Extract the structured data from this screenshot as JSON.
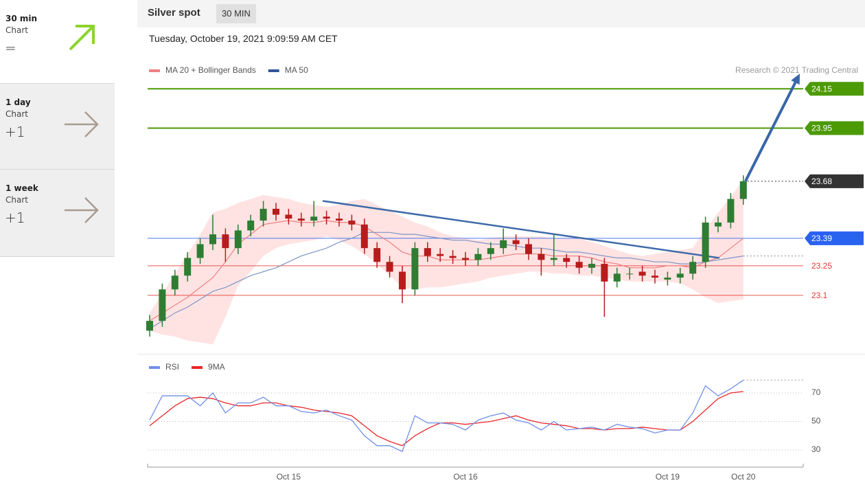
{
  "sidebar": [
    {
      "period": "30 min",
      "label": "Chart",
      "signal": "="
    },
    {
      "period": "1 day",
      "label": "Chart",
      "signal": "+1"
    },
    {
      "period": "1 week",
      "label": "Chart",
      "signal": "+1"
    }
  ],
  "header": {
    "title": "Silver spot",
    "interval": "30 MIN",
    "timestamp": "Tuesday, October 19, 2021 9:09:59 AM CET"
  },
  "chart_data": [
    {
      "type": "candlestick",
      "note": "Research © 2021 Trading Central",
      "categories": [
        null,
        null,
        null,
        null,
        null,
        null,
        null,
        null,
        null,
        null,
        null,
        "Oct 15",
        null,
        null,
        null,
        null,
        null,
        null,
        null,
        null,
        null,
        null,
        null,
        null,
        null,
        "Oct 16",
        null,
        null,
        null,
        null,
        null,
        null,
        null,
        null,
        null,
        null,
        null,
        null,
        null,
        null,
        null,
        "Oct 19",
        null,
        null,
        null,
        null,
        null,
        "Oct 20"
      ],
      "open": [
        22.92,
        22.97,
        23.13,
        23.2,
        23.29,
        23.36,
        23.41,
        23.34,
        23.43,
        23.48,
        23.54,
        23.51,
        23.49,
        23.48,
        23.5,
        23.49,
        23.48,
        23.46,
        23.34,
        23.27,
        23.22,
        23.13,
        23.34,
        23.31,
        23.3,
        23.29,
        23.28,
        23.31,
        23.34,
        23.38,
        23.36,
        23.31,
        23.28,
        23.29,
        23.27,
        23.24,
        23.26,
        23.17,
        23.21,
        23.22,
        23.2,
        23.18,
        23.19,
        23.21,
        23.27,
        23.45,
        23.47,
        23.59
      ],
      "high": [
        23.0,
        23.16,
        23.23,
        23.32,
        23.39,
        23.51,
        23.44,
        23.46,
        23.51,
        23.58,
        23.57,
        23.54,
        23.52,
        23.58,
        23.53,
        23.52,
        23.51,
        23.49,
        23.37,
        23.3,
        23.25,
        23.37,
        23.37,
        23.34,
        23.33,
        23.32,
        23.34,
        23.37,
        23.44,
        23.41,
        23.39,
        23.34,
        23.41,
        23.31,
        23.3,
        23.29,
        23.29,
        23.24,
        23.24,
        23.25,
        23.23,
        23.22,
        23.24,
        23.3,
        23.5,
        23.5,
        23.62,
        23.71
      ],
      "low": [
        22.89,
        22.94,
        23.1,
        23.17,
        23.26,
        23.33,
        23.27,
        23.31,
        23.4,
        23.45,
        23.48,
        23.46,
        23.45,
        23.45,
        23.46,
        23.45,
        23.43,
        23.31,
        23.24,
        23.19,
        23.06,
        23.1,
        23.27,
        23.27,
        23.26,
        23.25,
        23.25,
        23.28,
        23.31,
        23.33,
        23.28,
        23.2,
        23.25,
        23.24,
        23.21,
        23.21,
        22.99,
        23.14,
        23.18,
        23.17,
        23.16,
        23.15,
        23.16,
        23.18,
        23.24,
        23.42,
        23.44,
        23.56
      ],
      "close": [
        22.97,
        23.13,
        23.2,
        23.29,
        23.36,
        23.41,
        23.34,
        23.43,
        23.48,
        23.54,
        23.51,
        23.49,
        23.48,
        23.5,
        23.49,
        23.48,
        23.46,
        23.34,
        23.27,
        23.22,
        23.13,
        23.34,
        23.3,
        23.3,
        23.29,
        23.28,
        23.31,
        23.34,
        23.38,
        23.36,
        23.31,
        23.28,
        23.29,
        23.27,
        23.24,
        23.26,
        23.17,
        23.21,
        23.21,
        23.2,
        23.19,
        23.19,
        23.21,
        23.27,
        23.47,
        23.47,
        23.59,
        23.68
      ],
      "up_color": "#2e7d32",
      "down_color": "#b71c1c",
      "series": [
        {
          "name": "MA 20 + Bollinger Bands",
          "color": "#f07f7f",
          "band_color": "#ffdede",
          "values": [
            22.97,
            23.01,
            23.05,
            23.09,
            23.14,
            23.19,
            23.27,
            23.36,
            23.41,
            23.46,
            23.47,
            23.48,
            23.47,
            23.47,
            23.48,
            23.47,
            23.47,
            23.45,
            23.41,
            23.37,
            23.32,
            23.3,
            23.3,
            23.28,
            23.28,
            23.28,
            23.28,
            23.29,
            23.3,
            23.31,
            23.31,
            23.31,
            23.3,
            23.3,
            23.3,
            23.29,
            23.27,
            23.26,
            23.24,
            23.24,
            23.24,
            23.25,
            23.25,
            23.24,
            23.27,
            23.29,
            23.34,
            23.39
          ],
          "upper": [
            23.01,
            23.11,
            23.21,
            23.31,
            23.41,
            23.52,
            23.54,
            23.57,
            23.59,
            23.61,
            23.6,
            23.59,
            23.57,
            23.56,
            23.55,
            23.56,
            23.58,
            23.59,
            23.56,
            23.53,
            23.5,
            23.47,
            23.45,
            23.42,
            23.4,
            23.39,
            23.38,
            23.39,
            23.4,
            23.4,
            23.4,
            23.4,
            23.39,
            23.39,
            23.39,
            23.37,
            23.35,
            23.33,
            23.31,
            23.3,
            23.31,
            23.32,
            23.33,
            23.34,
            23.44,
            23.52,
            23.6,
            23.69
          ],
          "lower": [
            22.92,
            22.9,
            22.89,
            22.87,
            22.86,
            22.85,
            22.99,
            23.15,
            23.22,
            23.3,
            23.34,
            23.36,
            23.37,
            23.38,
            23.4,
            23.38,
            23.35,
            23.31,
            23.26,
            23.2,
            23.14,
            23.13,
            23.14,
            23.14,
            23.15,
            23.16,
            23.17,
            23.19,
            23.2,
            23.21,
            23.22,
            23.22,
            23.21,
            23.21,
            23.2,
            23.2,
            23.19,
            23.18,
            23.17,
            23.17,
            23.17,
            23.17,
            23.16,
            23.13,
            23.09,
            23.06,
            23.07,
            23.08
          ]
        },
        {
          "name": "MA 50",
          "color": "#7b95c4",
          "legend_color": "#2f5597",
          "values": [
            22.93,
            22.97,
            23.01,
            23.04,
            23.08,
            23.12,
            23.14,
            23.17,
            23.2,
            23.22,
            23.24,
            23.27,
            23.3,
            23.32,
            23.34,
            23.37,
            23.39,
            23.42,
            23.42,
            23.42,
            23.41,
            23.41,
            23.4,
            23.39,
            23.38,
            23.38,
            23.37,
            23.36,
            23.36,
            23.35,
            23.34,
            23.34,
            23.33,
            23.32,
            23.32,
            23.31,
            23.3,
            23.29,
            23.29,
            23.28,
            23.27,
            23.27,
            23.26,
            23.26,
            23.27,
            23.28,
            23.29,
            23.3
          ]
        }
      ],
      "levels": [
        {
          "value": 24.15,
          "color": "#4c9a06",
          "badge": true,
          "line": "solid"
        },
        {
          "value": 23.95,
          "color": "#4c9a06",
          "badge": true,
          "line": "solid"
        },
        {
          "value": 23.68,
          "color": "#333333",
          "badge": true,
          "line": "dotted"
        },
        {
          "value": 23.39,
          "color": "#2a62f0",
          "badge": true,
          "line": "thin"
        },
        {
          "value": 23.25,
          "color": "#e53935",
          "badge": false,
          "line": "thin"
        },
        {
          "value": 23.1,
          "color": "#e53935",
          "badge": false,
          "line": "thin"
        }
      ],
      "trendline": {
        "x": [
          13.7,
          45.1
        ],
        "values": [
          23.58,
          23.29
        ],
        "color": "#3d6aa8"
      },
      "ylim": [
        22.82,
        24.2
      ]
    },
    {
      "type": "line",
      "series": [
        {
          "name": "RSI",
          "color": "#6f8fe8",
          "values": [
            51,
            68,
            68,
            68,
            61,
            70,
            56,
            63,
            63,
            67,
            61,
            61,
            57,
            56,
            58,
            54,
            51,
            40,
            33,
            33,
            29,
            54,
            49,
            49,
            48,
            44,
            51,
            54,
            56,
            51,
            49,
            44,
            50,
            44,
            45,
            46,
            44,
            48,
            46,
            45,
            42,
            44,
            44,
            56,
            75,
            68,
            73,
            79
          ]
        },
        {
          "name": "9MA",
          "color": "#e8262a",
          "values": [
            47,
            54,
            61,
            66,
            67,
            66,
            63,
            61,
            61,
            63,
            63,
            61,
            60,
            58,
            57,
            56,
            54,
            47,
            40,
            36,
            33,
            40,
            45,
            49,
            49,
            48,
            49,
            50,
            52,
            54,
            51,
            49,
            48,
            47,
            45,
            45,
            44,
            45,
            45,
            46,
            45,
            44,
            44,
            50,
            58,
            66,
            70,
            71
          ]
        }
      ],
      "ylim": [
        18,
        83
      ],
      "yticks": [
        30,
        50,
        70
      ]
    }
  ]
}
